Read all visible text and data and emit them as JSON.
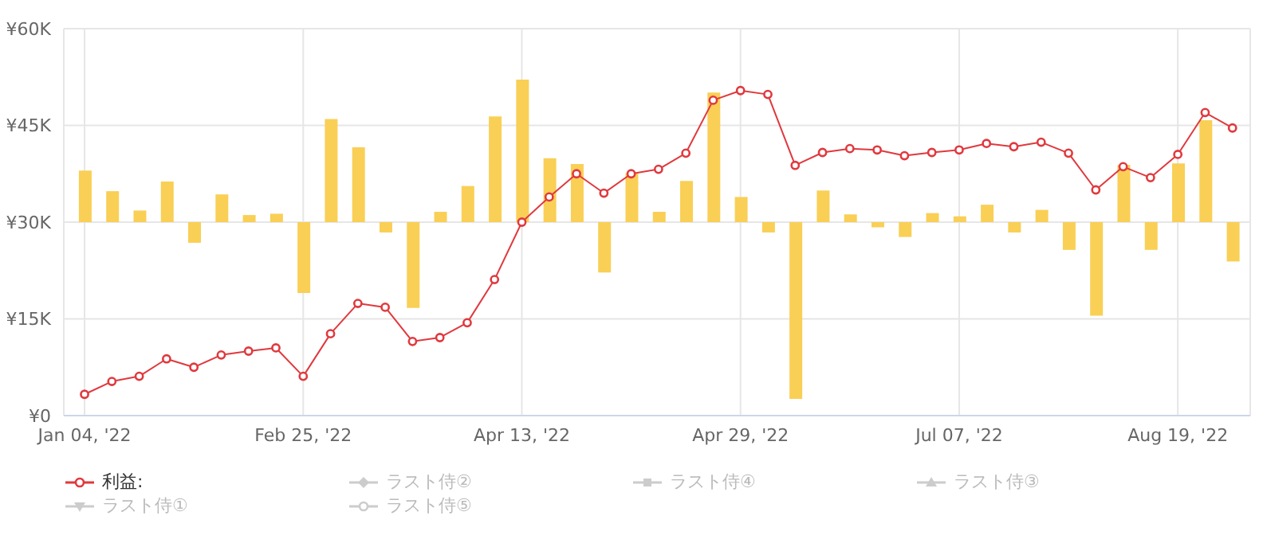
{
  "chart_data": {
    "type": "bar",
    "categories": [
      "Jan 04, '22",
      null,
      null,
      null,
      null,
      null,
      null,
      null,
      "Feb 25, '22",
      null,
      null,
      null,
      null,
      null,
      null,
      null,
      "Apr 13, '22",
      null,
      null,
      null,
      null,
      null,
      null,
      null,
      "Apr 29, '22",
      null,
      null,
      null,
      null,
      null,
      null,
      null,
      "Jul 07, '22",
      null,
      null,
      null,
      null,
      null,
      null,
      null,
      "Aug 19, '22",
      null,
      null
    ],
    "series": [
      {
        "color": "#f9cf56",
        "base": [
          30000,
          30000,
          30000,
          30000,
          30000,
          30000,
          30000,
          30000,
          30000,
          30000,
          30000,
          30000,
          30000,
          30000,
          30000,
          30000,
          30000,
          30000,
          30000,
          30000,
          30000,
          30000,
          30000,
          30000,
          30000,
          30000,
          30000,
          30000,
          30000,
          30000,
          30000,
          30000,
          30000,
          30000,
          30000,
          30000,
          30000,
          30000,
          30000,
          30000,
          30000,
          30000,
          30000
        ],
        "values": [
          8000,
          4800,
          1800,
          6300,
          -3200,
          4300,
          1100,
          1300,
          -11000,
          16000,
          11600,
          -1600,
          -13300,
          1600,
          5600,
          16400,
          22100,
          9900,
          9000,
          -7800,
          7600,
          1600,
          6400,
          20100,
          3900,
          -1600,
          -27400,
          4900,
          1200,
          -800,
          -2300,
          1400,
          900,
          2700,
          -1600,
          1900,
          -4300,
          -14500,
          8900,
          -4300,
          9100,
          15800,
          -6100
        ]
      },
      {
        "type": "line",
        "name": "利益:",
        "color": "#e0393e",
        "marker": "circle",
        "values": [
          3300,
          5300,
          6100,
          8800,
          7500,
          9400,
          10000,
          10500,
          6100,
          12700,
          17400,
          16800,
          11500,
          12100,
          14400,
          21100,
          30000,
          33900,
          37500,
          34500,
          37500,
          38200,
          40700,
          48900,
          50400,
          49800,
          38800,
          40800,
          41400,
          41200,
          40300,
          40800,
          41200,
          42200,
          41700,
          42400,
          40700,
          35000,
          38600,
          36900,
          40500,
          47000,
          44600
        ]
      },
      {
        "type": "line",
        "name": "ラスト侍②",
        "color": "#cccccc",
        "marker": "diamond",
        "values": [
          null,
          null,
          null,
          null,
          null,
          null,
          null,
          null,
          null,
          null,
          null,
          null,
          null,
          null,
          null,
          null,
          null,
          null,
          null,
          null,
          null,
          null,
          null,
          null,
          null,
          null,
          null,
          null,
          null,
          null,
          null,
          null,
          null,
          null,
          null,
          null,
          null,
          null,
          null,
          null,
          null,
          null,
          null
        ]
      },
      {
        "type": "line",
        "name": "ラスト侍④",
        "color": "#cccccc",
        "marker": "square",
        "values": [
          null,
          null,
          null,
          null,
          null,
          null,
          null,
          null,
          null,
          null,
          null,
          null,
          null,
          null,
          null,
          null,
          null,
          null,
          null,
          null,
          null,
          null,
          null,
          null,
          null,
          null,
          null,
          null,
          null,
          null,
          null,
          null,
          null,
          null,
          null,
          null,
          null,
          null,
          null,
          null,
          null,
          null,
          null
        ]
      },
      {
        "type": "line",
        "name": "ラスト侍③",
        "color": "#cccccc",
        "marker": "triangle",
        "values": [
          null,
          null,
          null,
          null,
          null,
          null,
          null,
          null,
          null,
          null,
          null,
          null,
          null,
          null,
          null,
          null,
          null,
          null,
          null,
          null,
          null,
          null,
          null,
          null,
          null,
          null,
          null,
          null,
          null,
          null,
          null,
          null,
          null,
          null,
          null,
          null,
          null,
          null,
          null,
          null,
          null,
          null,
          null
        ]
      },
      {
        "type": "line",
        "name": "ラスト侍①",
        "color": "#cccccc",
        "marker": "triangle-down",
        "values": [
          null,
          null,
          null,
          null,
          null,
          null,
          null,
          null,
          null,
          null,
          null,
          null,
          null,
          null,
          null,
          null,
          null,
          null,
          null,
          null,
          null,
          null,
          null,
          null,
          null,
          null,
          null,
          null,
          null,
          null,
          null,
          null,
          null,
          null,
          null,
          null,
          null,
          null,
          null,
          null,
          null,
          null,
          null
        ]
      },
      {
        "type": "line",
        "name": "ラスト侍⑤",
        "color": "#cccccc",
        "marker": "circle",
        "values": [
          null,
          null,
          null,
          null,
          null,
          null,
          null,
          null,
          null,
          null,
          null,
          null,
          null,
          null,
          null,
          null,
          null,
          null,
          null,
          null,
          null,
          null,
          null,
          null,
          null,
          null,
          null,
          null,
          null,
          null,
          null,
          null,
          null,
          null,
          null,
          null,
          null,
          null,
          null,
          null,
          null,
          null,
          null
        ]
      }
    ],
    "ylim": [
      0,
      60000
    ],
    "yticks": [
      {
        "value": 0,
        "label": "¥0"
      },
      {
        "value": 15000,
        "label": "¥15K"
      },
      {
        "value": 30000,
        "label": "¥30K"
      },
      {
        "value": 45000,
        "label": "¥45K"
      },
      {
        "value": 60000,
        "label": "¥60K"
      }
    ],
    "grid": true,
    "legend": "bottom"
  }
}
